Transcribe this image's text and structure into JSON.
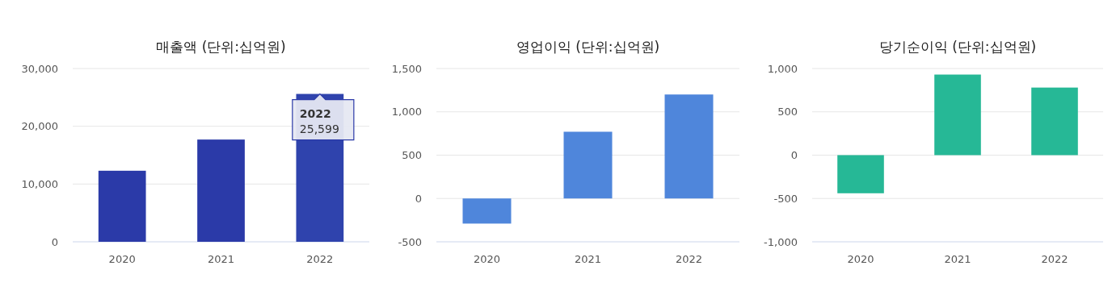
{
  "chart_data": [
    {
      "type": "bar",
      "title": "매출액 (단위:십억원)",
      "categories": [
        "2020",
        "2021",
        "2022"
      ],
      "values": [
        12300,
        17700,
        25599
      ],
      "colors": [
        "#2b3aa8",
        "#2b3aa8",
        "#2f43ad"
      ],
      "ylim": [
        0,
        30000
      ],
      "yticks": [
        0,
        {
          "value": 10000,
          "label": "10,000"
        },
        {
          "value": 20000,
          "label": "20,000"
        },
        {
          "value": 30000,
          "label": "30,000"
        }
      ],
      "grid": "y",
      "annotations": [
        {
          "text": "2022\n25,599",
          "x": "2022",
          "y": 25599
        }
      ]
    },
    {
      "type": "bar",
      "title": "영업이익 (단위:십억원)",
      "categories": [
        "2020",
        "2021",
        "2022"
      ],
      "values": [
        -290,
        770,
        1200
      ],
      "color": "#4f86db",
      "ylim": [
        -500,
        1500
      ],
      "yticks": [
        -500,
        0,
        500,
        {
          "value": 1000,
          "label": "1,000"
        },
        {
          "value": 1500,
          "label": "1,500"
        }
      ],
      "grid": "y"
    },
    {
      "type": "bar",
      "title": "당기순이익 (단위:십억원)",
      "categories": [
        "2020",
        "2021",
        "2022"
      ],
      "values": [
        -440,
        930,
        780
      ],
      "color": "#26b896",
      "ylim": [
        -1000,
        1000
      ],
      "yticks": [
        {
          "value": -1000,
          "label": "-1,000"
        },
        -500,
        0,
        500,
        {
          "value": 1000,
          "label": "1,000"
        }
      ],
      "grid": "y"
    }
  ]
}
